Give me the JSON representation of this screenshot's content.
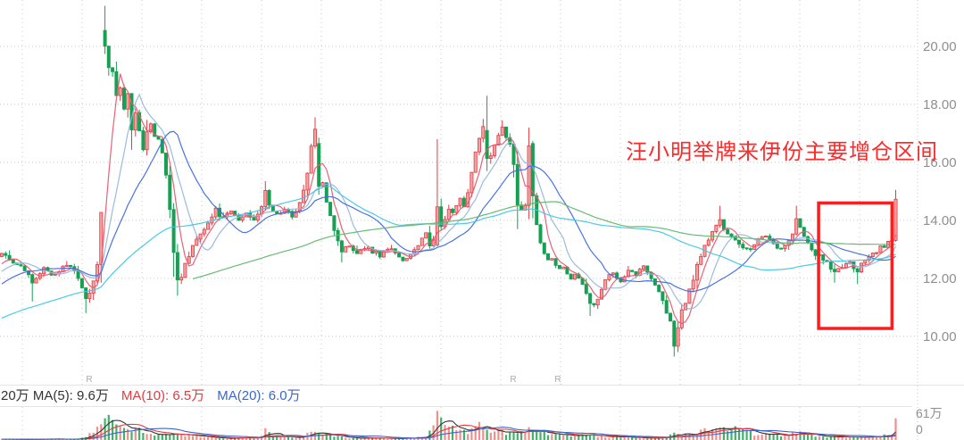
{
  "app": {
    "background": "#ffffff"
  },
  "chart_data": {
    "type": "candlestick",
    "description": "weekly K-line chart with volume sub-pane",
    "annotations": {
      "text": "汪小明举牌来伊份主要增仓区间",
      "text_color": "#fb2b2b",
      "box": {
        "start_index": 213.8,
        "end_index": 233,
        "price_top": 14.6,
        "price_bottom": 10.27,
        "color": "#f71f1f"
      }
    },
    "y_axis": {
      "labels": [
        "20.00",
        "18.00",
        "16.00",
        "14.00",
        "12.00",
        "10.00"
      ],
      "tick_prices": [
        20,
        18,
        16,
        14,
        12,
        10
      ],
      "price_at_pane_top": 21.6,
      "price_at_pane_bottom": 8.3
    },
    "volume_axis": {
      "max_label": "61万",
      "zero_label": "0",
      "max_value": 61
    },
    "series": {
      "count": 235,
      "first_open": 12.75,
      "close_anchors": [
        [
          0,
          12.9
        ],
        [
          3,
          12.6
        ],
        [
          5,
          12.45
        ],
        [
          8,
          11.85
        ],
        [
          11,
          12.35
        ],
        [
          14,
          12.1
        ],
        [
          17,
          12.5
        ],
        [
          19,
          12.25
        ],
        [
          21,
          11.65
        ],
        [
          22,
          11.3
        ],
        [
          23,
          11.5
        ],
        [
          24,
          11.95
        ],
        [
          25,
          12.55
        ],
        [
          26,
          14.3
        ],
        [
          27,
          20.0
        ],
        [
          28,
          19.3
        ],
        [
          29,
          19.05
        ],
        [
          30,
          18.25
        ],
        [
          31,
          18.55
        ],
        [
          32,
          17.9
        ],
        [
          33,
          18.3
        ],
        [
          34,
          17.1
        ],
        [
          35,
          17.7
        ],
        [
          36,
          17.15
        ],
        [
          37,
          16.5
        ],
        [
          38,
          17.0
        ],
        [
          39,
          17.3
        ],
        [
          40,
          16.9
        ],
        [
          41,
          16.75
        ],
        [
          42,
          16.3
        ],
        [
          43,
          15.5
        ],
        [
          44,
          14.4
        ],
        [
          45,
          12.95
        ],
        [
          46,
          11.95
        ],
        [
          47,
          12.1
        ],
        [
          48,
          12.45
        ],
        [
          50,
          13.1
        ],
        [
          52,
          13.6
        ],
        [
          54,
          13.9
        ],
        [
          56,
          14.35
        ],
        [
          58,
          14.05
        ],
        [
          60,
          14.3
        ],
        [
          62,
          14.0
        ],
        [
          64,
          14.25
        ],
        [
          66,
          14.05
        ],
        [
          68,
          14.5
        ],
        [
          69,
          14.95
        ],
        [
          70,
          14.5
        ],
        [
          72,
          14.2
        ],
        [
          74,
          14.35
        ],
        [
          76,
          14.15
        ],
        [
          78,
          14.6
        ],
        [
          79,
          15.0
        ],
        [
          80,
          15.6
        ],
        [
          81,
          16.6
        ],
        [
          82,
          17.1
        ],
        [
          83,
          15.1
        ],
        [
          84,
          15.35
        ],
        [
          85,
          14.7
        ],
        [
          86,
          14.2
        ],
        [
          87,
          13.7
        ],
        [
          88,
          13.3
        ],
        [
          89,
          12.95
        ],
        [
          91,
          13.15
        ],
        [
          93,
          12.9
        ],
        [
          95,
          13.1
        ],
        [
          97,
          12.95
        ],
        [
          99,
          12.8
        ],
        [
          101,
          13.05
        ],
        [
          103,
          12.9
        ],
        [
          105,
          12.6
        ],
        [
          107,
          12.8
        ],
        [
          109,
          13.1
        ],
        [
          110,
          13.4
        ],
        [
          111,
          13.6
        ],
        [
          112,
          13.1
        ],
        [
          113,
          13.3
        ],
        [
          114,
          14.4
        ],
        [
          115,
          13.8
        ],
        [
          116,
          14.1
        ],
        [
          117,
          14.45
        ],
        [
          118,
          14.2
        ],
        [
          119,
          14.5
        ],
        [
          120,
          14.75
        ],
        [
          121,
          14.4
        ],
        [
          122,
          14.9
        ],
        [
          123,
          15.6
        ],
        [
          124,
          16.3
        ],
        [
          125,
          16.9
        ],
        [
          126,
          17.25
        ],
        [
          127,
          16.15
        ],
        [
          128,
          16.3
        ],
        [
          129,
          16.6
        ],
        [
          130,
          16.9
        ],
        [
          131,
          17.2
        ],
        [
          132,
          16.8
        ],
        [
          133,
          16.6
        ],
        [
          134,
          15.9
        ],
        [
          135,
          14.6
        ],
        [
          136,
          14.3
        ],
        [
          137,
          14.5
        ],
        [
          138,
          16.6
        ],
        [
          139,
          14.9
        ],
        [
          140,
          13.9
        ],
        [
          141,
          13.3
        ],
        [
          142,
          12.9
        ],
        [
          143,
          12.6
        ],
        [
          144,
          12.75
        ],
        [
          145,
          12.5
        ],
        [
          146,
          12.3
        ],
        [
          147,
          12.45
        ],
        [
          148,
          12.2
        ],
        [
          149,
          12.05
        ],
        [
          150,
          12.2
        ],
        [
          151,
          11.95
        ],
        [
          152,
          11.75
        ],
        [
          153,
          11.5
        ],
        [
          154,
          11.15
        ],
        [
          155,
          11.05
        ],
        [
          156,
          11.3
        ],
        [
          157,
          11.6
        ],
        [
          158,
          11.9
        ],
        [
          159,
          12.1
        ],
        [
          160,
          12.2
        ],
        [
          162,
          11.95
        ],
        [
          164,
          12.3
        ],
        [
          166,
          12.15
        ],
        [
          168,
          12.4
        ],
        [
          170,
          12.05
        ],
        [
          172,
          11.55
        ],
        [
          174,
          10.85
        ],
        [
          175,
          10.5
        ],
        [
          176,
          9.6
        ],
        [
          177,
          10.3
        ],
        [
          178,
          10.85
        ],
        [
          179,
          11.2
        ],
        [
          180,
          11.6
        ],
        [
          181,
          12.0
        ],
        [
          182,
          12.4
        ],
        [
          183,
          12.75
        ],
        [
          184,
          13.1
        ],
        [
          185,
          13.35
        ],
        [
          186,
          13.6
        ],
        [
          187,
          13.8
        ],
        [
          188,
          13.95
        ],
        [
          189,
          13.75
        ],
        [
          190,
          13.6
        ],
        [
          191,
          13.45
        ],
        [
          192,
          13.35
        ],
        [
          193,
          13.2
        ],
        [
          194,
          13.1
        ],
        [
          195,
          13.0
        ],
        [
          196,
          13.05
        ],
        [
          197,
          13.2
        ],
        [
          198,
          13.35
        ],
        [
          199,
          13.45
        ],
        [
          200,
          13.5
        ],
        [
          201,
          13.35
        ],
        [
          202,
          13.2
        ],
        [
          203,
          13.1
        ],
        [
          204,
          13.0
        ],
        [
          205,
          13.1
        ],
        [
          206,
          13.25
        ],
        [
          207,
          13.6
        ],
        [
          208,
          14.0
        ],
        [
          209,
          13.7
        ],
        [
          210,
          13.4
        ],
        [
          211,
          13.2
        ],
        [
          212,
          13.0
        ],
        [
          213,
          12.85
        ],
        [
          214,
          12.75
        ],
        [
          215,
          12.6
        ],
        [
          216,
          12.5
        ],
        [
          217,
          12.35
        ],
        [
          218,
          12.2
        ],
        [
          219,
          12.35
        ],
        [
          220,
          12.3
        ],
        [
          221,
          12.45
        ],
        [
          222,
          12.55
        ],
        [
          223,
          12.4
        ],
        [
          224,
          12.2
        ],
        [
          225,
          12.45
        ],
        [
          226,
          12.7
        ],
        [
          227,
          12.8
        ],
        [
          228,
          12.85
        ],
        [
          229,
          12.95
        ],
        [
          230,
          13.05
        ],
        [
          231,
          13.1
        ],
        [
          232,
          13.25
        ],
        [
          233,
          13.3
        ],
        [
          234,
          14.7
        ]
      ],
      "overrides": {
        "8": {
          "low": 11.2
        },
        "22": {
          "low": 10.8
        },
        "27": {
          "open": 20.55,
          "high": 21.4
        },
        "46": {
          "low": 11.4
        },
        "69": {
          "high": 15.35
        },
        "82": {
          "high": 17.55
        },
        "83": {
          "open": 16.65
        },
        "89": {
          "low": 12.55
        },
        "114": {
          "open": 13.15,
          "high": 16.8
        },
        "126": {
          "high": 17.5
        },
        "127": {
          "open": 17.1,
          "high": 18.3
        },
        "131": {
          "high": 17.45
        },
        "138": {
          "high": 17.2
        },
        "139": {
          "open": 16.65
        },
        "154": {
          "low": 10.7
        },
        "176": {
          "low": 9.3
        },
        "188": {
          "high": 14.5
        },
        "208": {
          "high": 14.5
        },
        "218": {
          "low": 11.85
        },
        "224": {
          "low": 11.8
        },
        "234": {
          "high": 15.05
        }
      }
    },
    "volume": {
      "anchors": [
        [
          0,
          1.5
        ],
        [
          8,
          1.5
        ],
        [
          14,
          1.5
        ],
        [
          20,
          2
        ],
        [
          22,
          6
        ],
        [
          24,
          14
        ],
        [
          25,
          20
        ],
        [
          26,
          28
        ],
        [
          27,
          42
        ],
        [
          28,
          50
        ],
        [
          29,
          36
        ],
        [
          30,
          30
        ],
        [
          32,
          24
        ],
        [
          34,
          20
        ],
        [
          36,
          17
        ],
        [
          38,
          14
        ],
        [
          40,
          12
        ],
        [
          43,
          10
        ],
        [
          45,
          13
        ],
        [
          47,
          9
        ],
        [
          50,
          9
        ],
        [
          54,
          6
        ],
        [
          58,
          4
        ],
        [
          62,
          4
        ],
        [
          66,
          4
        ],
        [
          67,
          6
        ],
        [
          68,
          10
        ],
        [
          69,
          16
        ],
        [
          70,
          12
        ],
        [
          72,
          8
        ],
        [
          74,
          6
        ],
        [
          77,
          5
        ],
        [
          79,
          8
        ],
        [
          80,
          12
        ],
        [
          81,
          16
        ],
        [
          82,
          20
        ],
        [
          83,
          14
        ],
        [
          84,
          10
        ],
        [
          86,
          8
        ],
        [
          88,
          6
        ],
        [
          90,
          4
        ],
        [
          93,
          3
        ],
        [
          96,
          3
        ],
        [
          99,
          3
        ],
        [
          102,
          3
        ],
        [
          105,
          3
        ],
        [
          107,
          4
        ],
        [
          109,
          6
        ],
        [
          111,
          9
        ],
        [
          113,
          28
        ],
        [
          114,
          56
        ],
        [
          115,
          45
        ],
        [
          116,
          28
        ],
        [
          118,
          20
        ],
        [
          120,
          16
        ],
        [
          122,
          18
        ],
        [
          124,
          26
        ],
        [
          125,
          34
        ],
        [
          126,
          24
        ],
        [
          128,
          17
        ],
        [
          130,
          19
        ],
        [
          132,
          15
        ],
        [
          134,
          12
        ],
        [
          136,
          13
        ],
        [
          138,
          20
        ],
        [
          140,
          19
        ],
        [
          142,
          13
        ],
        [
          144,
          11
        ],
        [
          146,
          9
        ],
        [
          148,
          8
        ],
        [
          150,
          8
        ],
        [
          152,
          9
        ],
        [
          154,
          10
        ],
        [
          156,
          8
        ],
        [
          158,
          7
        ],
        [
          160,
          6
        ],
        [
          163,
          5
        ],
        [
          166,
          4
        ],
        [
          169,
          4
        ],
        [
          172,
          5
        ],
        [
          174,
          7
        ],
        [
          176,
          11
        ],
        [
          178,
          9
        ],
        [
          180,
          10
        ],
        [
          182,
          14
        ],
        [
          184,
          18
        ],
        [
          186,
          21
        ],
        [
          188,
          23
        ],
        [
          190,
          17
        ],
        [
          192,
          24
        ],
        [
          194,
          21
        ],
        [
          196,
          15
        ],
        [
          198,
          11
        ],
        [
          200,
          10
        ],
        [
          202,
          9
        ],
        [
          204,
          8
        ],
        [
          206,
          9
        ],
        [
          208,
          15
        ],
        [
          210,
          10
        ],
        [
          212,
          8
        ],
        [
          214,
          6
        ],
        [
          216,
          6
        ],
        [
          218,
          7
        ],
        [
          220,
          6
        ],
        [
          222,
          6
        ],
        [
          224,
          7
        ],
        [
          226,
          6
        ],
        [
          228,
          6
        ],
        [
          230,
          7
        ],
        [
          232,
          10
        ],
        [
          233,
          13
        ],
        [
          234,
          40
        ]
      ]
    },
    "moving_averages": {
      "windows": [
        5,
        10,
        20,
        60,
        120
      ],
      "colors": [
        "#e8586e",
        "#94b8dc",
        "#3f6be0",
        "#3fc8e2",
        "#5fb86a"
      ]
    },
    "volume_mas": {
      "windows": [
        5,
        10,
        20
      ],
      "colors": [
        "#333333",
        "#e23b41",
        "#3a66cc"
      ]
    },
    "prehistory": {
      "length": 70,
      "close_anchors": [
        [
          0,
          9.0
        ],
        [
          45,
          10.5
        ],
        [
          69,
          12.5
        ]
      ],
      "volume_level": 1.5
    },
    "restore_markers": {
      "label": "R",
      "x_positions": [
        100,
        575,
        625
      ]
    }
  },
  "volume_legend": {
    "segments": [
      {
        "text": "20万 MA(5): 9.6万",
        "color": "#333333"
      },
      {
        "text": "MA(10): 6.5万",
        "color": "#e23b41"
      },
      {
        "text": "MA(20): 6.0万",
        "color": "#3a66cc"
      }
    ]
  },
  "colors": {
    "up_fill": "#f5a2a4",
    "up_stroke": "#e23b41",
    "down": "#17a053",
    "vol_up": "#f0908c",
    "vol_down": "#43b06c",
    "grid": "#c9c9c9",
    "axis_text": "#8f8f8f",
    "divider": "#e4e4e4",
    "r_marker": "#aaaaaa"
  }
}
